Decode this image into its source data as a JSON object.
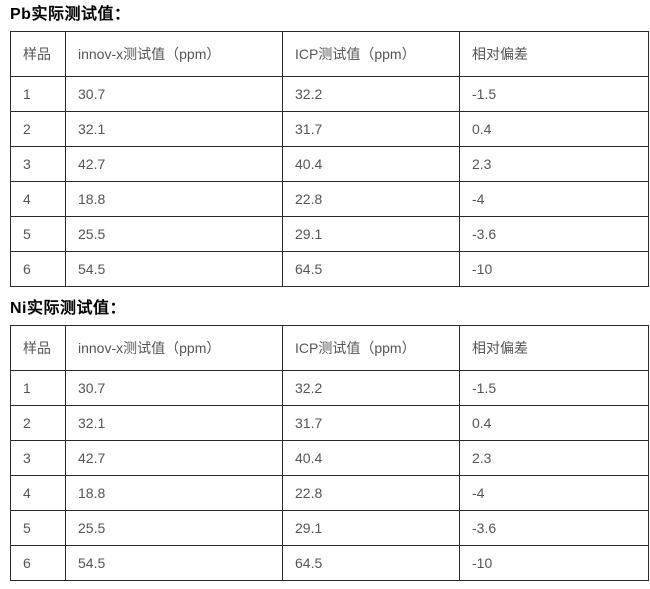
{
  "page": {
    "background_color": "#ffffff",
    "border_color": "#2b2b2b",
    "title_color": "#000000",
    "cell_text_color": "#555555"
  },
  "tables": [
    {
      "id": "pb",
      "title": "Pb实际测试值：",
      "headers": [
        "样品",
        "innov-x测试值（ppm）",
        "ICP测试值（ppm）",
        "相对偏差"
      ],
      "rows": [
        [
          "1",
          "30.7",
          "32.2",
          "-1.5"
        ],
        [
          "2",
          "32.1",
          "31.7",
          "0.4"
        ],
        [
          "3",
          "42.7",
          "40.4",
          "2.3"
        ],
        [
          "4",
          "18.8",
          "22.8",
          "-4"
        ],
        [
          "5",
          "25.5",
          "29.1",
          "-3.6"
        ],
        [
          "6",
          "54.5",
          "64.5",
          "-10"
        ]
      ]
    },
    {
      "id": "ni",
      "title": "Ni实际测试值：",
      "headers": [
        "样品",
        "innov-x测试值（ppm）",
        "ICP测试值（ppm）",
        "相对偏差"
      ],
      "rows": [
        [
          "1",
          "30.7",
          "32.2",
          "-1.5"
        ],
        [
          "2",
          "32.1",
          "31.7",
          "0.4"
        ],
        [
          "3",
          "42.7",
          "40.4",
          "2.3"
        ],
        [
          "4",
          "18.8",
          "22.8",
          "-4"
        ],
        [
          "5",
          "25.5",
          "29.1",
          "-3.6"
        ],
        [
          "6",
          "54.5",
          "64.5",
          "-10"
        ]
      ]
    }
  ]
}
